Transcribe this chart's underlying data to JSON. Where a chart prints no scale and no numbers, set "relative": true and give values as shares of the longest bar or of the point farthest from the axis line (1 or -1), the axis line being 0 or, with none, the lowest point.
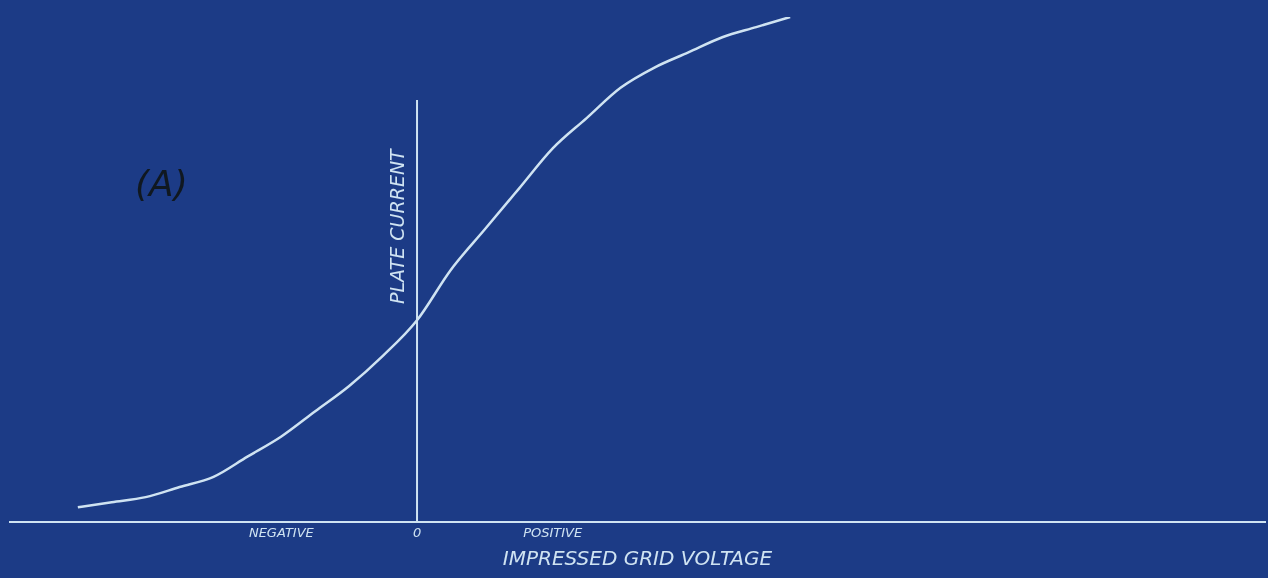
{
  "chart_data": {
    "type": "line",
    "relative": true,
    "xlabel": "IMPRESSED GRID VOLTAGE",
    "categories": [
      null,
      null,
      null,
      null,
      null,
      null,
      null,
      null,
      "NEGATIVE",
      null,
      null,
      null,
      "0",
      null,
      null,
      null,
      "POSITIVE",
      null,
      null,
      null,
      null,
      null,
      null,
      null,
      null,
      null,
      null,
      null,
      null,
      null,
      null,
      null,
      null,
      null,
      null,
      null,
      null,
      null
    ],
    "series": [
      {
        "color": "#cfe3f2",
        "values": [
          null,
          null,
          0.03,
          0.04,
          0.05,
          0.07,
          0.09,
          0.13,
          0.17,
          0.22,
          0.27,
          0.33,
          0.4,
          0.5,
          0.58,
          0.66,
          0.74,
          0.8,
          0.86,
          0.9,
          0.93,
          0.96,
          0.98,
          1,
          null,
          null,
          null,
          null,
          null,
          null,
          null,
          null,
          null,
          null,
          null,
          null,
          null,
          null
        ]
      }
    ],
    "ref_lines": [
      {
        "axis": "x",
        "value": "0",
        "label": "PLATE CURRENT",
        "color": "#cfe3f2"
      }
    ],
    "annotations": [
      "(A)"
    ],
    "grid": false,
    "legend": false
  }
}
